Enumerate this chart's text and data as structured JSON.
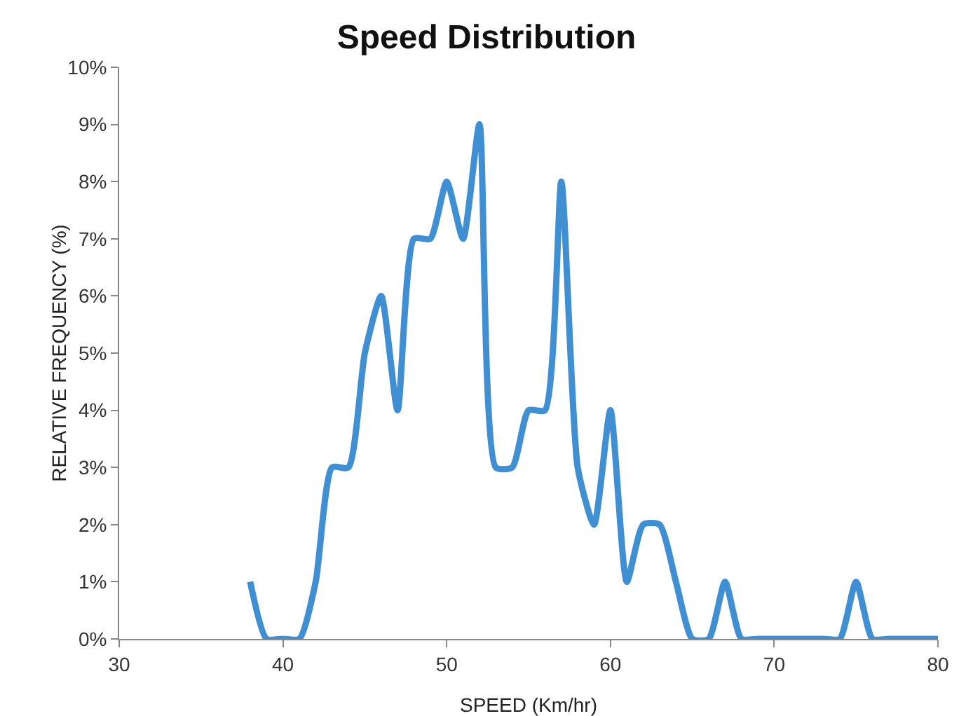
{
  "chart_data": {
    "type": "line",
    "title": "Speed Distribution",
    "xlabel": "SPEED (Km/hr)",
    "ylabel": "RELATIVE FREQUENCY (%)",
    "x": [
      38,
      39,
      40,
      41,
      42,
      43,
      44,
      45,
      46,
      47,
      48,
      49,
      50,
      51,
      52,
      53,
      54,
      55,
      56,
      57,
      58,
      59,
      60,
      61,
      62,
      63,
      64,
      65,
      66,
      67,
      68,
      69,
      70,
      71,
      72,
      73,
      74,
      75,
      76,
      77,
      78,
      79,
      80
    ],
    "series": [
      {
        "color": "#3f8fd2",
        "values": [
          1,
          0,
          0,
          0,
          1,
          3,
          3,
          5,
          6,
          4,
          7,
          7,
          8,
          7,
          9,
          3,
          3,
          4,
          4,
          8,
          3,
          2,
          4,
          1,
          2,
          2,
          1,
          0,
          0,
          1,
          0,
          0,
          0,
          0,
          0,
          0,
          0,
          1,
          0,
          0,
          0,
          0,
          0
        ]
      }
    ],
    "xlim": [
      30,
      80
    ],
    "xticks": [
      30,
      40,
      50,
      60,
      70,
      80
    ],
    "ylim": [
      0,
      10
    ],
    "yticks": [
      {
        "value": 0,
        "label": "0%"
      },
      {
        "value": 1,
        "label": "1%"
      },
      {
        "value": 2,
        "label": "2%"
      },
      {
        "value": 3,
        "label": "3%"
      },
      {
        "value": 4,
        "label": "4%"
      },
      {
        "value": 5,
        "label": "5%"
      },
      {
        "value": 6,
        "label": "6%"
      },
      {
        "value": 7,
        "label": "7%"
      },
      {
        "value": 8,
        "label": "8%"
      },
      {
        "value": 9,
        "label": "9%"
      },
      {
        "value": 10,
        "label": "10%"
      }
    ],
    "grid": false,
    "marker": "none",
    "line_style": "solid"
  }
}
